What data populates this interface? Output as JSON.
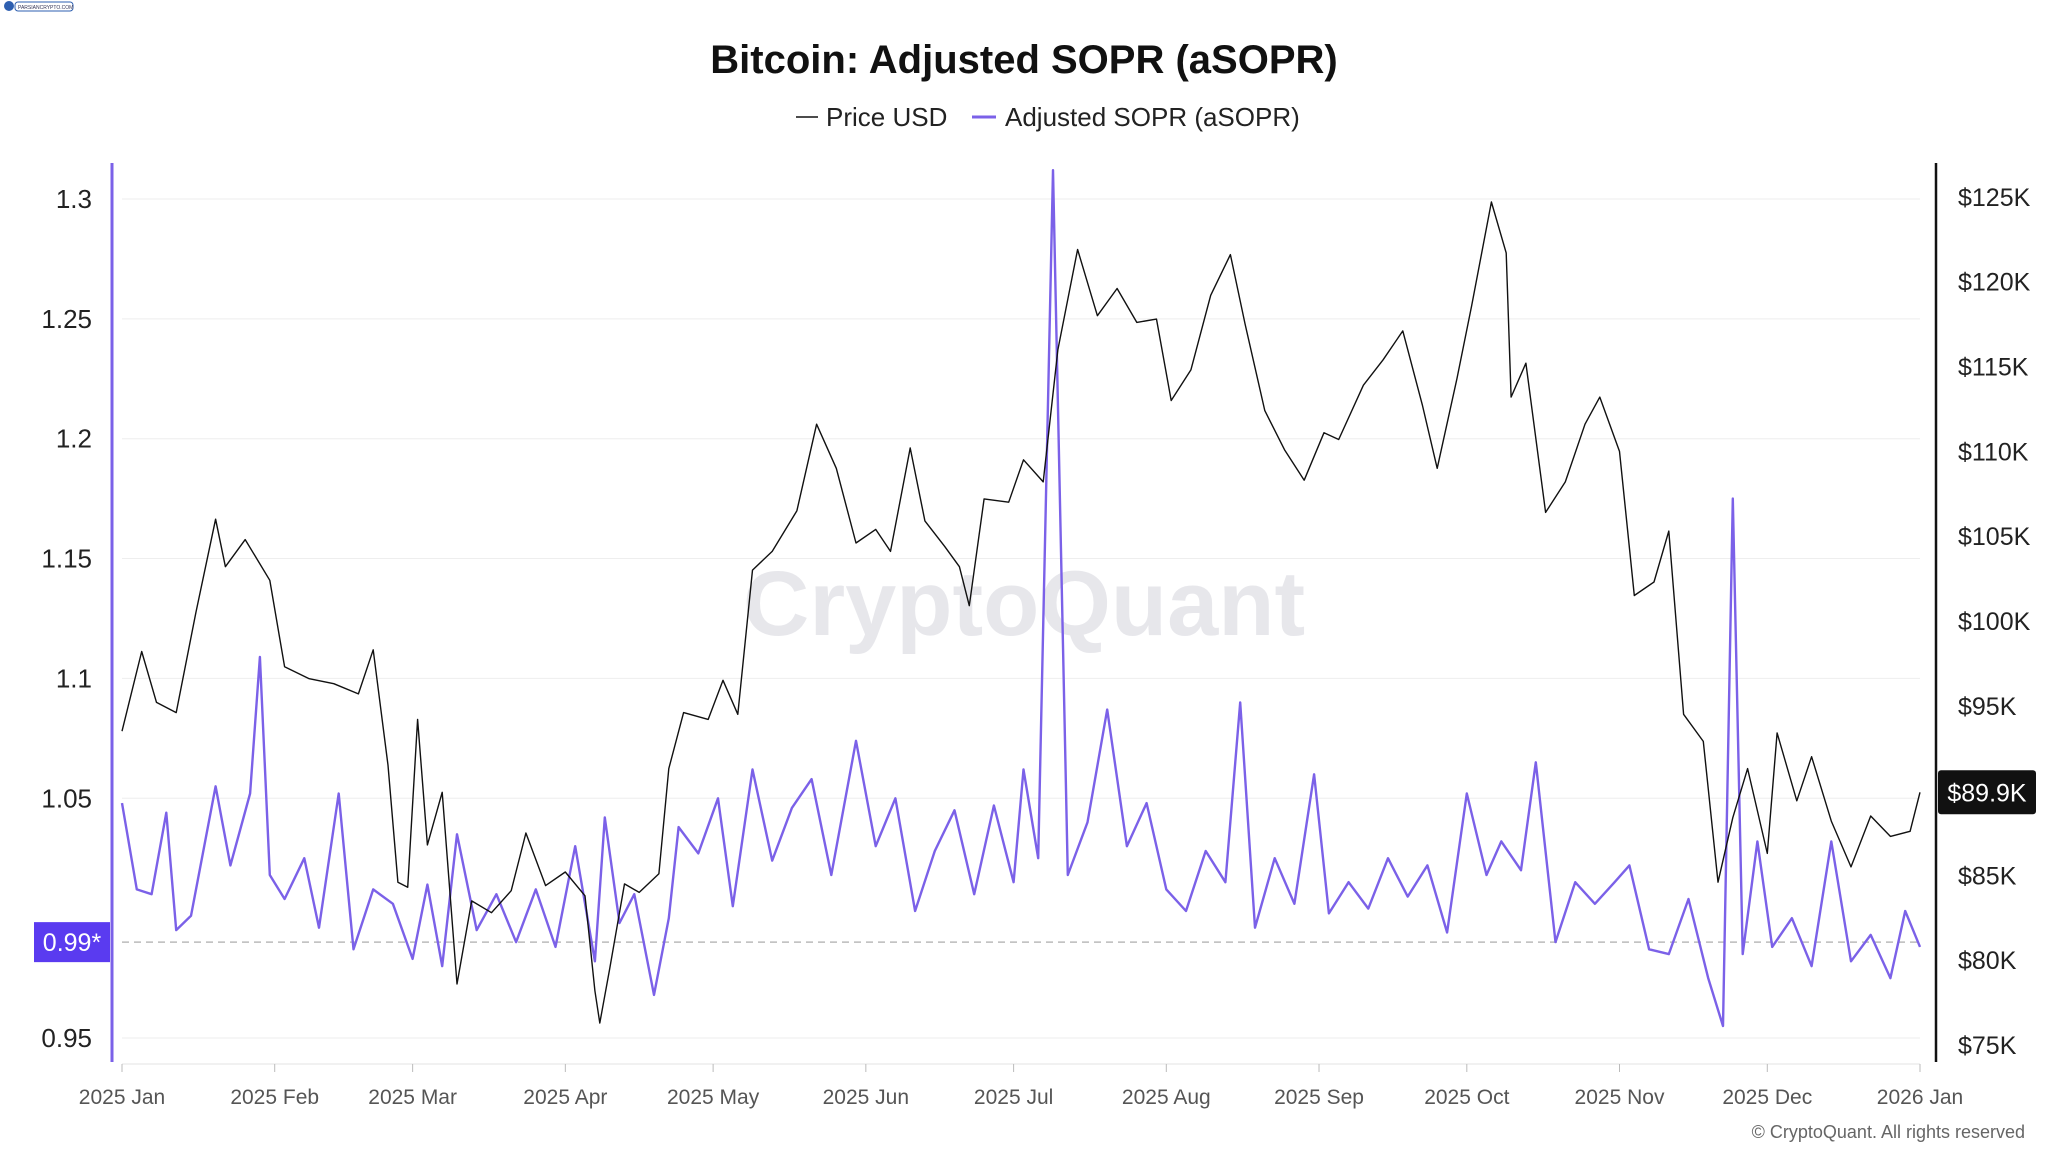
{
  "corner_logo": "PARSIANCRYPTO.COM",
  "watermark": "CryptoQuant",
  "copyright": "© CryptoQuant. All rights reserved",
  "colors": {
    "price": "#111111",
    "asopr": "#7b61e8",
    "badge_left": "#5a3bf0",
    "badge_right": "#111111",
    "grid": "#eeeeee",
    "ref_line": "#bbbbbb"
  },
  "chart_data": {
    "type": "line",
    "title": "Bitcoin: Adjusted SOPR (aSOPR)",
    "legend": {
      "placement": "top-center"
    },
    "x_labels": [
      "2025 Jan",
      "2025 Feb",
      "2025 Mar",
      "2025 Apr",
      "2025 May",
      "2025 Jun",
      "2025 Jul",
      "2025 Aug",
      "2025 Sep",
      "2025 Oct",
      "2025 Nov",
      "2025 Dec",
      "2026 Jan"
    ],
    "x_range": [
      "2025-01-01",
      "2026-01-01"
    ],
    "y_left": {
      "ticks": [
        "0.95",
        "1.05",
        "1.1",
        "1.15",
        "1.2",
        "1.25",
        "1.3"
      ],
      "range": [
        0.94,
        1.315
      ]
    },
    "y_right": {
      "ticks": [
        "$75K",
        "$80K",
        "$85K",
        "$89.9K",
        "$95K",
        "$100K",
        "$105K",
        "$110K",
        "$115K",
        "$120K",
        "$125K"
      ],
      "range": [
        74000,
        127000
      ]
    },
    "reference": {
      "value": 0.99,
      "label": "0.99*"
    },
    "last_price_label": "$89.9K",
    "series": [
      {
        "name": "Price USD",
        "axis": "right",
        "points": [
          [
            "2025-01-01",
            93500
          ],
          [
            "2025-01-05",
            98200
          ],
          [
            "2025-01-08",
            95200
          ],
          [
            "2025-01-12",
            94600
          ],
          [
            "2025-01-16",
            100500
          ],
          [
            "2025-01-20",
            106000
          ],
          [
            "2025-01-22",
            103200
          ],
          [
            "2025-01-26",
            104800
          ],
          [
            "2025-01-31",
            102400
          ],
          [
            "2025-02-03",
            97300
          ],
          [
            "2025-02-08",
            96600
          ],
          [
            "2025-02-13",
            96300
          ],
          [
            "2025-02-18",
            95700
          ],
          [
            "2025-02-21",
            98300
          ],
          [
            "2025-02-24",
            91500
          ],
          [
            "2025-02-26",
            84600
          ],
          [
            "2025-02-28",
            84300
          ],
          [
            "2025-03-02",
            94200
          ],
          [
            "2025-03-04",
            86800
          ],
          [
            "2025-03-07",
            89900
          ],
          [
            "2025-03-10",
            78600
          ],
          [
            "2025-03-13",
            83500
          ],
          [
            "2025-03-17",
            82800
          ],
          [
            "2025-03-21",
            84100
          ],
          [
            "2025-03-24",
            87500
          ],
          [
            "2025-03-28",
            84400
          ],
          [
            "2025-04-01",
            85200
          ],
          [
            "2025-04-05",
            83800
          ],
          [
            "2025-04-07",
            78200
          ],
          [
            "2025-04-08",
            76300
          ],
          [
            "2025-04-10",
            79500
          ],
          [
            "2025-04-13",
            84500
          ],
          [
            "2025-04-16",
            84000
          ],
          [
            "2025-04-20",
            85100
          ],
          [
            "2025-04-22",
            91300
          ],
          [
            "2025-04-25",
            94600
          ],
          [
            "2025-04-30",
            94200
          ],
          [
            "2025-05-03",
            96500
          ],
          [
            "2025-05-06",
            94500
          ],
          [
            "2025-05-09",
            103000
          ],
          [
            "2025-05-13",
            104100
          ],
          [
            "2025-05-18",
            106500
          ],
          [
            "2025-05-22",
            111600
          ],
          [
            "2025-05-26",
            109000
          ],
          [
            "2025-05-30",
            104600
          ],
          [
            "2025-06-03",
            105400
          ],
          [
            "2025-06-06",
            104100
          ],
          [
            "2025-06-10",
            110200
          ],
          [
            "2025-06-13",
            105900
          ],
          [
            "2025-06-17",
            104400
          ],
          [
            "2025-06-20",
            103200
          ],
          [
            "2025-06-22",
            100900
          ],
          [
            "2025-06-25",
            107200
          ],
          [
            "2025-06-30",
            107000
          ],
          [
            "2025-07-03",
            109500
          ],
          [
            "2025-07-07",
            108200
          ],
          [
            "2025-07-10",
            116000
          ],
          [
            "2025-07-14",
            121900
          ],
          [
            "2025-07-18",
            118000
          ],
          [
            "2025-07-22",
            119600
          ],
          [
            "2025-07-26",
            117600
          ],
          [
            "2025-07-30",
            117800
          ],
          [
            "2025-08-02",
            113000
          ],
          [
            "2025-08-06",
            114800
          ],
          [
            "2025-08-10",
            119200
          ],
          [
            "2025-08-14",
            121600
          ],
          [
            "2025-08-17",
            117500
          ],
          [
            "2025-08-21",
            112400
          ],
          [
            "2025-08-25",
            110100
          ],
          [
            "2025-08-29",
            108300
          ],
          [
            "2025-09-02",
            111100
          ],
          [
            "2025-09-05",
            110700
          ],
          [
            "2025-09-10",
            113900
          ],
          [
            "2025-09-14",
            115400
          ],
          [
            "2025-09-18",
            117100
          ],
          [
            "2025-09-22",
            112700
          ],
          [
            "2025-09-25",
            109000
          ],
          [
            "2025-09-29",
            114300
          ],
          [
            "2025-10-02",
            118600
          ],
          [
            "2025-10-06",
            124700
          ],
          [
            "2025-10-09",
            121700
          ],
          [
            "2025-10-10",
            113200
          ],
          [
            "2025-10-13",
            115200
          ],
          [
            "2025-10-17",
            106400
          ],
          [
            "2025-10-21",
            108200
          ],
          [
            "2025-10-25",
            111600
          ],
          [
            "2025-10-28",
            113200
          ],
          [
            "2025-11-01",
            110000
          ],
          [
            "2025-11-04",
            101500
          ],
          [
            "2025-11-08",
            102300
          ],
          [
            "2025-11-11",
            105300
          ],
          [
            "2025-11-14",
            94500
          ],
          [
            "2025-11-18",
            92900
          ],
          [
            "2025-11-21",
            84600
          ],
          [
            "2025-11-24",
            88400
          ],
          [
            "2025-11-27",
            91300
          ],
          [
            "2025-12-01",
            86300
          ],
          [
            "2025-12-03",
            93400
          ],
          [
            "2025-12-07",
            89400
          ],
          [
            "2025-12-10",
            92000
          ],
          [
            "2025-12-14",
            88200
          ],
          [
            "2025-12-18",
            85500
          ],
          [
            "2025-12-22",
            88500
          ],
          [
            "2025-12-26",
            87300
          ],
          [
            "2025-12-30",
            87600
          ],
          [
            "2026-01-01",
            89900
          ]
        ]
      },
      {
        "name": "Adjusted SOPR (aSOPR)",
        "axis": "left",
        "points": [
          [
            "2025-01-01",
            1.048
          ],
          [
            "2025-01-04",
            1.012
          ],
          [
            "2025-01-07",
            1.01
          ],
          [
            "2025-01-10",
            1.044
          ],
          [
            "2025-01-12",
            0.995
          ],
          [
            "2025-01-15",
            1.001
          ],
          [
            "2025-01-20",
            1.055
          ],
          [
            "2025-01-23",
            1.022
          ],
          [
            "2025-01-27",
            1.052
          ],
          [
            "2025-01-29",
            1.109
          ],
          [
            "2025-01-31",
            1.018
          ],
          [
            "2025-02-03",
            1.008
          ],
          [
            "2025-02-07",
            1.025
          ],
          [
            "2025-02-10",
            0.996
          ],
          [
            "2025-02-14",
            1.052
          ],
          [
            "2025-02-17",
            0.987
          ],
          [
            "2025-02-21",
            1.012
          ],
          [
            "2025-02-25",
            1.006
          ],
          [
            "2025-03-01",
            0.983
          ],
          [
            "2025-03-04",
            1.014
          ],
          [
            "2025-03-07",
            0.98
          ],
          [
            "2025-03-10",
            1.035
          ],
          [
            "2025-03-14",
            0.995
          ],
          [
            "2025-03-18",
            1.01
          ],
          [
            "2025-03-22",
            0.99
          ],
          [
            "2025-03-26",
            1.012
          ],
          [
            "2025-03-30",
            0.988
          ],
          [
            "2025-04-03",
            1.03
          ],
          [
            "2025-04-07",
            0.982
          ],
          [
            "2025-04-09",
            1.042
          ],
          [
            "2025-04-12",
            0.998
          ],
          [
            "2025-04-15",
            1.01
          ],
          [
            "2025-04-19",
            0.968
          ],
          [
            "2025-04-22",
            1.0
          ],
          [
            "2025-04-24",
            1.038
          ],
          [
            "2025-04-28",
            1.027
          ],
          [
            "2025-05-02",
            1.05
          ],
          [
            "2025-05-05",
            1.005
          ],
          [
            "2025-05-09",
            1.062
          ],
          [
            "2025-05-13",
            1.024
          ],
          [
            "2025-05-17",
            1.046
          ],
          [
            "2025-05-21",
            1.058
          ],
          [
            "2025-05-25",
            1.018
          ],
          [
            "2025-05-30",
            1.074
          ],
          [
            "2025-06-03",
            1.03
          ],
          [
            "2025-06-07",
            1.05
          ],
          [
            "2025-06-11",
            1.003
          ],
          [
            "2025-06-15",
            1.028
          ],
          [
            "2025-06-19",
            1.045
          ],
          [
            "2025-06-23",
            1.01
          ],
          [
            "2025-06-27",
            1.047
          ],
          [
            "2025-07-01",
            1.015
          ],
          [
            "2025-07-03",
            1.062
          ],
          [
            "2025-07-06",
            1.025
          ],
          [
            "2025-07-09",
            1.312
          ],
          [
            "2025-07-12",
            1.018
          ],
          [
            "2025-07-16",
            1.04
          ],
          [
            "2025-07-20",
            1.087
          ],
          [
            "2025-07-24",
            1.03
          ],
          [
            "2025-07-28",
            1.048
          ],
          [
            "2025-08-01",
            1.012
          ],
          [
            "2025-08-05",
            1.003
          ],
          [
            "2025-08-09",
            1.028
          ],
          [
            "2025-08-13",
            1.015
          ],
          [
            "2025-08-16",
            1.09
          ],
          [
            "2025-08-19",
            0.996
          ],
          [
            "2025-08-23",
            1.025
          ],
          [
            "2025-08-27",
            1.006
          ],
          [
            "2025-08-31",
            1.06
          ],
          [
            "2025-09-03",
            1.002
          ],
          [
            "2025-09-07",
            1.015
          ],
          [
            "2025-09-11",
            1.004
          ],
          [
            "2025-09-15",
            1.025
          ],
          [
            "2025-09-19",
            1.009
          ],
          [
            "2025-09-23",
            1.022
          ],
          [
            "2025-09-27",
            0.994
          ],
          [
            "2025-10-01",
            1.052
          ],
          [
            "2025-10-05",
            1.018
          ],
          [
            "2025-10-08",
            1.032
          ],
          [
            "2025-10-12",
            1.02
          ],
          [
            "2025-10-15",
            1.065
          ],
          [
            "2025-10-19",
            0.99
          ],
          [
            "2025-10-23",
            1.015
          ],
          [
            "2025-10-27",
            1.006
          ],
          [
            "2025-10-31",
            1.015
          ],
          [
            "2025-11-03",
            1.022
          ],
          [
            "2025-11-07",
            0.987
          ],
          [
            "2025-11-11",
            0.985
          ],
          [
            "2025-11-15",
            1.008
          ],
          [
            "2025-11-19",
            0.975
          ],
          [
            "2025-11-22",
            0.955
          ],
          [
            "2025-11-24",
            1.175
          ],
          [
            "2025-11-26",
            0.985
          ],
          [
            "2025-11-29",
            1.032
          ],
          [
            "2025-12-02",
            0.988
          ],
          [
            "2025-12-06",
            1.0
          ],
          [
            "2025-12-10",
            0.98
          ],
          [
            "2025-12-14",
            1.032
          ],
          [
            "2025-12-18",
            0.982
          ],
          [
            "2025-12-22",
            0.993
          ],
          [
            "2025-12-26",
            0.975
          ],
          [
            "2025-12-29",
            1.003
          ],
          [
            "2026-01-01",
            0.988
          ]
        ]
      }
    ]
  }
}
